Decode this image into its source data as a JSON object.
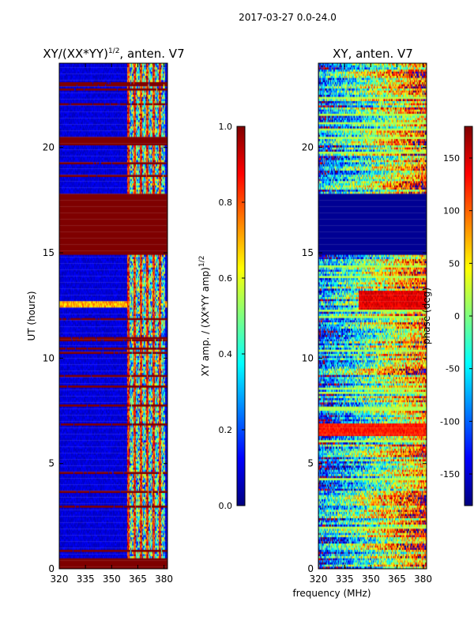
{
  "figure_title": "2017-03-27 0.0-24.0",
  "colors": {
    "jet_stops": [
      "#00007f",
      "#0000ff",
      "#007fff",
      "#00ffff",
      "#7fff7f",
      "#ffff00",
      "#ff7f00",
      "#ff0000",
      "#7f0000"
    ],
    "tick": "#000000",
    "background": "#ffffff"
  },
  "chart_data": [
    {
      "type": "heatmap",
      "title_main": "XY/(XX*YY)",
      "title_sup": "1/2",
      "title_rest": ", anten. V7",
      "xlabel": "",
      "ylabel": "UT (hours)",
      "xlim": [
        320,
        382
      ],
      "ylim": [
        0,
        24
      ],
      "xticks": [
        320,
        335,
        350,
        365,
        380
      ],
      "yticks": [
        0,
        5,
        10,
        15,
        20
      ],
      "grid": false,
      "colorbar": {
        "label_main": "XY amp. / (XX*YY amp)",
        "label_sup": "1/2",
        "range": [
          0.0,
          1.0
        ],
        "ticks": [
          "0.0",
          "0.2",
          "0.4",
          "0.6",
          "0.8",
          "1.0"
        ],
        "tick_values": [
          0.0,
          0.2,
          0.4,
          0.6,
          0.8,
          1.0
        ]
      },
      "saturated_time_blocks_hours": [
        [
          0.0,
          0.5
        ],
        [
          20.1,
          20.5
        ],
        [
          14.9,
          17.8
        ]
      ],
      "bright_frequency_band_mhz": [
        359,
        380
      ],
      "typical_value": 0.05,
      "band_value_range": [
        0.3,
        1.0
      ]
    },
    {
      "type": "heatmap",
      "title_main": "XY, anten. V7",
      "xlabel": "frequency (MHz)",
      "ylabel": "",
      "xlim": [
        320,
        382
      ],
      "ylim": [
        0,
        24
      ],
      "xticks": [
        320,
        335,
        350,
        365,
        380
      ],
      "yticks": [
        0,
        5,
        10,
        15,
        20
      ],
      "grid": false,
      "colorbar": {
        "label_main": "phase (deg)",
        "range": [
          -180,
          180
        ],
        "ticks": [
          "-150",
          "-100",
          "-50",
          "0",
          "50",
          "100",
          "150"
        ],
        "tick_values": [
          -150,
          -100,
          -50,
          0,
          50,
          100,
          150
        ]
      },
      "saturated_time_blocks_hours": [
        [
          14.9,
          17.8
        ]
      ],
      "saturated_value_deg": -180,
      "noisy_phase_range_deg": [
        -180,
        180
      ]
    }
  ]
}
